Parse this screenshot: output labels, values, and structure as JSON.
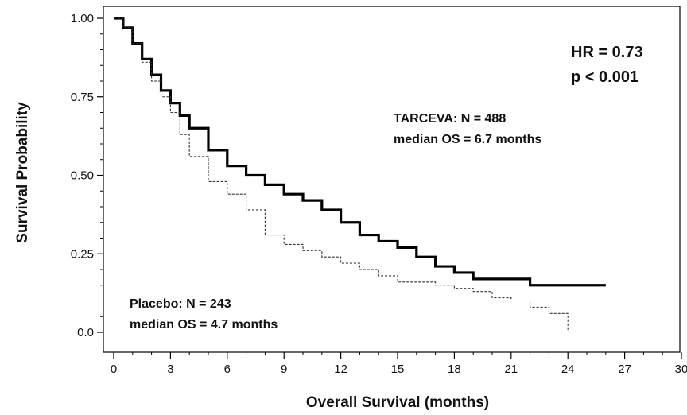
{
  "chart_data": {
    "type": "line",
    "xlabel": "Overall Survival (months)",
    "ylabel": "Survival Probability",
    "xlim": [
      0,
      30
    ],
    "ylim": [
      0,
      1
    ],
    "x_ticks": [
      "0",
      "3",
      "6",
      "9",
      "12",
      "15",
      "18",
      "21",
      "24",
      "27",
      "30"
    ],
    "y_ticks": [
      "0.0",
      "0.25",
      "0.50",
      "0.75",
      "1.00"
    ],
    "grid": false,
    "series": [
      {
        "name": "TARCEVA",
        "style": "solid",
        "color": "#000000",
        "x": [
          0,
          0.5,
          1,
          1.5,
          2,
          2.5,
          3,
          3.5,
          4,
          5,
          6,
          7,
          8,
          9,
          10,
          11,
          12,
          13,
          14,
          15,
          16,
          17,
          18,
          19,
          20,
          21,
          22,
          23,
          24,
          25,
          26
        ],
        "y": [
          1.0,
          0.97,
          0.92,
          0.87,
          0.82,
          0.77,
          0.73,
          0.69,
          0.65,
          0.58,
          0.53,
          0.5,
          0.47,
          0.44,
          0.42,
          0.39,
          0.35,
          0.31,
          0.29,
          0.27,
          0.24,
          0.21,
          0.19,
          0.17,
          0.17,
          0.17,
          0.15,
          0.15,
          0.15,
          0.15,
          0.15
        ]
      },
      {
        "name": "Placebo",
        "style": "dashed",
        "color": "#333333",
        "x": [
          0,
          0.5,
          1,
          1.5,
          2,
          2.5,
          3,
          3.5,
          4,
          5,
          6,
          7,
          8,
          9,
          10,
          11,
          12,
          13,
          14,
          15,
          16,
          17,
          18,
          19,
          20,
          21,
          22,
          23,
          24
        ],
        "y": [
          1.0,
          0.97,
          0.92,
          0.86,
          0.8,
          0.75,
          0.7,
          0.63,
          0.56,
          0.48,
          0.44,
          0.39,
          0.31,
          0.28,
          0.26,
          0.24,
          0.22,
          0.2,
          0.18,
          0.16,
          0.16,
          0.15,
          0.14,
          0.13,
          0.11,
          0.1,
          0.08,
          0.06,
          0.0
        ]
      }
    ],
    "annotations": {
      "hr": "HR = 0.73",
      "p": "p < 0.001",
      "tarceva_n": "TARCEVA: N = 488",
      "tarceva_median": "median OS = 6.7 months",
      "placebo_n": "Placebo: N = 243",
      "placebo_median": "median OS = 4.7 months"
    }
  }
}
